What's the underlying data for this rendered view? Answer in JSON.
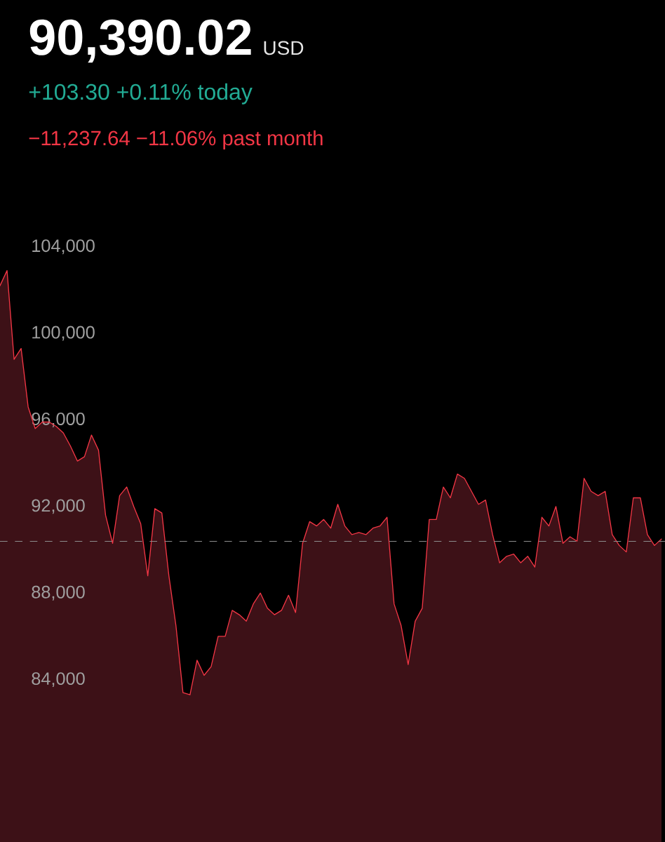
{
  "chart_data": {
    "type": "area",
    "title": "90,390.02",
    "annotations": [
      "USD",
      "+103.30 +0.11% today",
      "−11,237.64 −11.06% past month"
    ],
    "categories": [
      null,
      null,
      null,
      null,
      null,
      null,
      null,
      null,
      null,
      null,
      null,
      null,
      null,
      null,
      null,
      null,
      null,
      null,
      null,
      null,
      null,
      null,
      null,
      null,
      null,
      null,
      null,
      null,
      null,
      null,
      null,
      null,
      null,
      null,
      null,
      null,
      null,
      null,
      null,
      null,
      null,
      null,
      null,
      null,
      null,
      null,
      null,
      null,
      null,
      null,
      null,
      null,
      null,
      null,
      null,
      null,
      null,
      null,
      null,
      null,
      null,
      null,
      null,
      null,
      null,
      null,
      null,
      null,
      null,
      null,
      null,
      null,
      null,
      null,
      null,
      null,
      null,
      null,
      null,
      null,
      null,
      null,
      null,
      null,
      null,
      null,
      null,
      null,
      null,
      null,
      null,
      null,
      null,
      null,
      null
    ],
    "values": [
      102200,
      102900,
      98800,
      99300,
      96600,
      95600,
      95900,
      95900,
      95700,
      95400,
      94800,
      94100,
      94300,
      95300,
      94600,
      91600,
      90300,
      92500,
      92900,
      92000,
      91200,
      88800,
      91900,
      91700,
      88800,
      86500,
      83400,
      83300,
      84900,
      84200,
      84600,
      86000,
      86000,
      87200,
      87000,
      86700,
      87500,
      88000,
      87300,
      87000,
      87200,
      87900,
      87100,
      90300,
      91300,
      91100,
      91400,
      91000,
      92100,
      91100,
      90700,
      90800,
      90700,
      91000,
      91100,
      91500,
      87500,
      86500,
      84700,
      86700,
      87300,
      91400,
      91400,
      92900,
      92400,
      93500,
      93300,
      92700,
      92100,
      92300,
      90700,
      89400,
      89700,
      89800,
      89400,
      89700,
      89200,
      91500,
      91100,
      92000,
      90300,
      90600,
      90400,
      93300,
      92700,
      92500,
      92700,
      90700,
      90200,
      89900,
      92400,
      92400,
      90700,
      90200,
      90500
    ],
    "color": "#f23645",
    "ylim": [
      76500,
      115400
    ],
    "yticks": [
      {
        "value": 84000,
        "label": "84,000"
      },
      {
        "value": 88000,
        "label": "88,000"
      },
      {
        "value": 92000,
        "label": "92,000"
      },
      {
        "value": 96000,
        "label": "96,000"
      },
      {
        "value": 100000,
        "label": "100,000"
      },
      {
        "value": 104000,
        "label": "104,000"
      }
    ],
    "tick_labels": "y",
    "ref_lines": [
      {
        "axis": "y",
        "value": 90390.02,
        "color": "#8c8c8c",
        "line_style": "dashed"
      }
    ]
  }
}
